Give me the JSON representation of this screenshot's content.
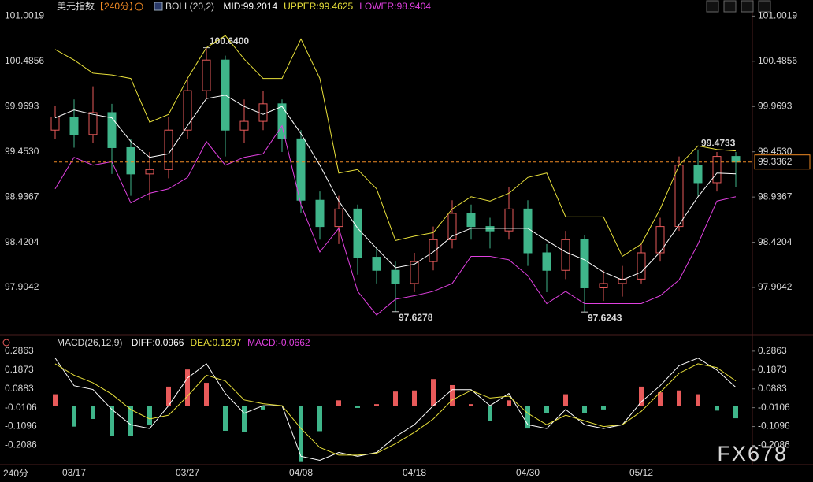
{
  "chart_data": [
    {
      "type": "candlestick",
      "title": "美元指数",
      "period": "【240分】",
      "indicator": "BOLL(20,2)",
      "separator": ":",
      "categories": [
        null,
        "03/17",
        null,
        null,
        null,
        null,
        null,
        "03/27",
        null,
        null,
        null,
        null,
        null,
        "04/08",
        null,
        null,
        null,
        null,
        null,
        "04/18",
        null,
        null,
        null,
        null,
        null,
        "04/30",
        null,
        null,
        null,
        null,
        null,
        "05/12",
        null,
        null,
        null,
        null,
        null
      ],
      "open": [
        99.7,
        99.85,
        99.65,
        99.9,
        99.5,
        99.2,
        99.25,
        99.7,
        100.15,
        100.5,
        99.7,
        99.8,
        100.0,
        99.6,
        98.9,
        98.6,
        98.8,
        98.25,
        98.1,
        97.95,
        98.2,
        98.45,
        98.75,
        98.6,
        98.55,
        98.8,
        98.3,
        98.1,
        98.45,
        97.9,
        97.95,
        98.0,
        98.3,
        98.6,
        99.3,
        99.1,
        99.4
      ],
      "high": [
        99.98,
        100.05,
        100.2,
        100.0,
        99.6,
        99.45,
        99.85,
        100.3,
        100.64,
        100.55,
        100.05,
        100.15,
        100.05,
        99.7,
        99.0,
        98.95,
        98.85,
        98.35,
        98.2,
        98.3,
        98.6,
        98.9,
        98.85,
        98.7,
        99.05,
        98.9,
        98.4,
        98.55,
        98.5,
        98.1,
        98.15,
        98.4,
        98.7,
        99.4,
        99.4733,
        99.45,
        99.45
      ],
      "low": [
        99.6,
        99.5,
        99.55,
        99.2,
        98.95,
        98.9,
        99.15,
        99.6,
        100.05,
        99.4,
        99.55,
        99.7,
        99.45,
        98.75,
        98.45,
        98.4,
        98.05,
        97.95,
        97.6278,
        97.85,
        98.1,
        98.35,
        98.45,
        98.35,
        98.45,
        98.15,
        97.85,
        98.0,
        97.6243,
        97.75,
        97.8,
        97.95,
        98.2,
        98.55,
        98.95,
        99.0,
        99.05
      ],
      "close": [
        99.85,
        99.65,
        99.9,
        99.5,
        99.2,
        99.25,
        99.7,
        100.15,
        100.5,
        99.7,
        99.8,
        100.0,
        99.6,
        98.9,
        98.6,
        98.8,
        98.25,
        98.1,
        97.95,
        98.2,
        98.45,
        98.75,
        98.6,
        98.55,
        98.8,
        98.3,
        98.1,
        98.45,
        97.9,
        97.95,
        98.0,
        98.3,
        98.6,
        99.3,
        99.1,
        99.4,
        99.3362
      ],
      "high_labels": [
        null,
        null,
        null,
        null,
        null,
        null,
        null,
        null,
        "100.6400",
        null,
        null,
        null,
        null,
        null,
        null,
        null,
        null,
        null,
        null,
        null,
        null,
        null,
        null,
        null,
        null,
        null,
        null,
        null,
        null,
        null,
        null,
        null,
        null,
        null,
        "99.4733",
        null,
        null
      ],
      "low_labels": [
        null,
        null,
        null,
        null,
        null,
        null,
        null,
        null,
        null,
        null,
        null,
        null,
        null,
        null,
        null,
        null,
        null,
        null,
        "97.6278",
        null,
        null,
        null,
        null,
        null,
        null,
        null,
        null,
        null,
        "97.6243",
        null,
        null,
        null,
        null,
        null,
        null,
        null,
        null
      ],
      "up_color": "#e85a5a",
      "down_color": "#3fb58a",
      "last_price_color": "#f08a24",
      "series": [
        {
          "name": "MID",
          "color": "#ffffff",
          "values": [
            99.84,
            99.93,
            99.88,
            99.84,
            99.57,
            99.39,
            99.43,
            99.75,
            100.06,
            100.1,
            99.97,
            99.88,
            99.97,
            99.66,
            99.3,
            98.89,
            98.58,
            98.35,
            98.13,
            98.17,
            98.31,
            98.49,
            98.58,
            98.58,
            98.58,
            98.58,
            98.44,
            98.31,
            98.22,
            98.08,
            97.99,
            98.08,
            98.31,
            98.62,
            98.94,
            99.21,
            99.2014
          ]
        },
        {
          "name": "UPPER",
          "color": "#e8e03a",
          "values": [
            100.62,
            100.5,
            100.35,
            100.33,
            100.29,
            99.79,
            99.88,
            100.29,
            100.64,
            100.78,
            100.51,
            100.29,
            100.29,
            100.74,
            100.29,
            99.21,
            99.25,
            99.03,
            98.44,
            98.49,
            98.53,
            98.8,
            98.94,
            98.89,
            98.98,
            99.16,
            99.21,
            98.71,
            98.71,
            98.71,
            98.26,
            98.4,
            98.8,
            99.3,
            99.52,
            99.48,
            99.4625
          ]
        },
        {
          "name": "LOWER",
          "color": "#e040e0",
          "values": [
            99.03,
            99.39,
            99.3,
            99.34,
            98.87,
            98.98,
            99.03,
            99.16,
            99.57,
            99.3,
            99.39,
            99.43,
            99.75,
            98.85,
            98.31,
            98.58,
            97.86,
            97.59,
            97.77,
            97.81,
            97.86,
            97.95,
            98.26,
            98.26,
            98.22,
            98.04,
            97.72,
            97.86,
            97.72,
            97.72,
            97.72,
            97.72,
            97.81,
            97.99,
            98.4,
            98.89,
            98.9404
          ]
        }
      ],
      "ylim": [
        97.5,
        101.14
      ],
      "yticks": [
        101.0019,
        100.4856,
        99.9693,
        {
          "value": 99.453,
          "label": "99.4530"
        },
        98.9367,
        98.4204,
        97.9042
      ]
    },
    {
      "type": "macd",
      "indicator": "MACD(26,12,9)",
      "separator": ":",
      "series": [
        {
          "name": "DIFF",
          "color": "#ffffff",
          "values": [
            0.25,
            0.105,
            0.085,
            -0.02,
            -0.1,
            -0.12,
            0,
            0.145,
            0.22,
            0.064,
            -0.04,
            0,
            0,
            -0.266,
            -0.287,
            -0.246,
            -0.266,
            -0.246,
            -0.163,
            -0.1,
            0,
            0.084,
            0.084,
            0,
            0.064,
            -0.1,
            -0.12,
            -0.02,
            -0.1,
            -0.12,
            -0.1,
            0.02,
            0.105,
            0.21,
            0.25,
            0.187,
            0.0966
          ]
        },
        {
          "name": "DEA",
          "color": "#e8e03a",
          "values": [
            0.22,
            0.16,
            0.12,
            0.06,
            -0.02,
            -0.07,
            -0.05,
            0.05,
            0.16,
            0.13,
            0.03,
            0.01,
            0,
            -0.12,
            -0.22,
            -0.26,
            -0.26,
            -0.25,
            -0.2,
            -0.14,
            -0.07,
            0.03,
            0.08,
            0.04,
            0.05,
            -0.04,
            -0.1,
            -0.05,
            -0.08,
            -0.11,
            -0.1,
            -0.03,
            0.07,
            0.17,
            0.22,
            0.2,
            0.1297
          ]
        },
        {
          "name": "MACD",
          "color": "#e040e0",
          "type": "bar",
          "up_color": "#e85a5a",
          "down_color": "#3fb58a",
          "values": [
            0.06,
            -0.11,
            -0.07,
            -0.16,
            -0.16,
            -0.1,
            0.1,
            0.19,
            0.12,
            -0.132,
            -0.14,
            -0.02,
            0,
            -0.292,
            -0.134,
            0.028,
            -0.012,
            0.008,
            0.074,
            0.08,
            0.14,
            0.108,
            0.008,
            -0.08,
            0.028,
            -0.12,
            -0.04,
            0.06,
            -0.04,
            -0.02,
            0,
            0.1,
            0.07,
            0.08,
            0.06,
            -0.026,
            -0.0662
          ]
        }
      ],
      "ylim": [
        -0.31,
        0.352
      ],
      "yticks": [
        0.2863,
        0.1873,
        0.0883,
        -0.0106,
        -0.1096,
        -0.2086
      ]
    }
  ],
  "period_badge": "240分",
  "watermark": "FX678"
}
